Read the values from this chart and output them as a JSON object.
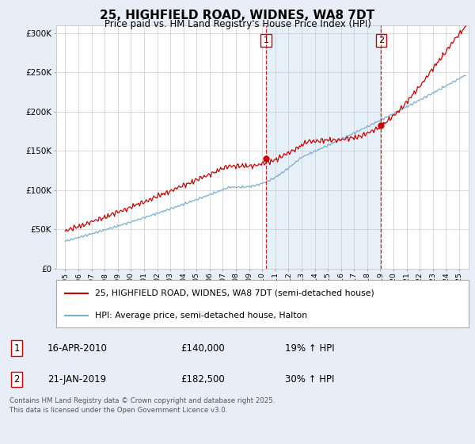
{
  "title": "25, HIGHFIELD ROAD, WIDNES, WA8 7DT",
  "subtitle": "Price paid vs. HM Land Registry's House Price Index (HPI)",
  "ylabel_ticks": [
    "£0",
    "£50K",
    "£100K",
    "£150K",
    "£200K",
    "£250K",
    "£300K"
  ],
  "ytick_values": [
    0,
    50000,
    100000,
    150000,
    200000,
    250000,
    300000
  ],
  "ylim": [
    0,
    310000
  ],
  "sale1_date": "16-APR-2010",
  "sale1_price": 140000,
  "sale1_hpi": "19% ↑ HPI",
  "sale2_date": "21-JAN-2019",
  "sale2_price": 182500,
  "sale2_hpi": "30% ↑ HPI",
  "line1_label": "25, HIGHFIELD ROAD, WIDNES, WA8 7DT (semi-detached house)",
  "line2_label": "HPI: Average price, semi-detached house, Halton",
  "line1_color": "#cc0000",
  "line2_color": "#7eadd4",
  "vline_color": "#cc0000",
  "background_color": "#e8eef8",
  "plot_bg_color": "#ffffff",
  "footer": "Contains HM Land Registry data © Crown copyright and database right 2025.\nThis data is licensed under the Open Government Licence v3.0.",
  "sale1_x": 2010.29,
  "sale2_x": 2019.05,
  "xlim_left": 1994.3,
  "xlim_right": 2025.7
}
